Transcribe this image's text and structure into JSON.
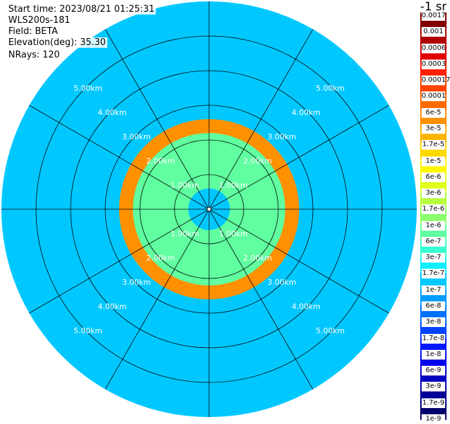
{
  "info": {
    "start_time": "Start time: 2023/08/21 01:25:31",
    "instrument": "WLS200s-181",
    "field": "Field: BETA",
    "elevation": "Elevation(deg): 35.30",
    "nrays": "NRays: 120"
  },
  "colorbar": {
    "title": "-1 sr",
    "colors": [
      "#800000",
      "#b00000",
      "#e00000",
      "#ff2000",
      "#ff4400",
      "#ff6a00",
      "#ff9000",
      "#ffb400",
      "#ffd800",
      "#fff800",
      "#e0ff18",
      "#b8ff40",
      "#8cff6c",
      "#60ffa0",
      "#38ffd0",
      "#10f0ff",
      "#00c8ff",
      "#009cff",
      "#0070ff",
      "#0044ff",
      "#0018ff",
      "#0000ea",
      "#0000c0",
      "#000096",
      "#00006c"
    ],
    "labels": [
      "0.0017",
      "0.001",
      "0.0006",
      "0.0003",
      "0.00017",
      "0.0001",
      "6e-5",
      "3e-5",
      "1.7e-5",
      "1e-5",
      "6e-6",
      "3e-6",
      "1.7e-6",
      "1e-6",
      "6e-7",
      "3e-7",
      "1.7e-7",
      "1e-7",
      "6e-8",
      "3e-8",
      "1.7e-8",
      "1e-8",
      "6e-9",
      "3e-9",
      "1.7e-9",
      "1e-9"
    ]
  },
  "chart_data": {
    "type": "heatmap",
    "projection": "polar PPI scan",
    "field": "BETA",
    "units": "-1 sr",
    "nrays": 120,
    "range_rings_km": [
      1.0,
      2.0,
      3.0,
      4.0,
      5.0
    ],
    "range_ring_labels": [
      "1.00km",
      "2.00km",
      "3.00km",
      "4.00km",
      "5.00km"
    ],
    "max_range_km": 6.0,
    "azimuth_spokes": 12,
    "value_bands": [
      {
        "range_km": [
          0.0,
          0.6
        ],
        "beta": "1.7e-7"
      },
      {
        "range_km": [
          0.6,
          2.2
        ],
        "beta": "1e-6"
      },
      {
        "range_km": [
          2.2,
          2.6
        ],
        "beta": "6e-5"
      },
      {
        "range_km": [
          2.6,
          6.0
        ],
        "beta": "1.7e-7"
      }
    ],
    "grid": true
  }
}
